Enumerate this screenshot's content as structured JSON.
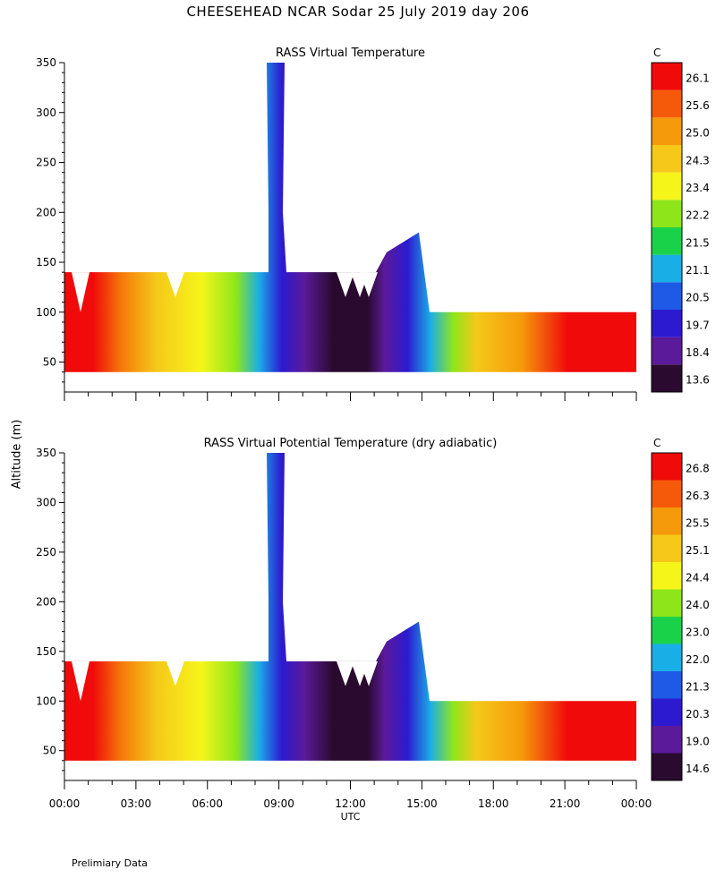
{
  "page": {
    "title": "CHEESEHEAD   NCAR Sodar   25 July 2019   day 206",
    "y_label": "Altitude (m)",
    "footer": "Prelimiary Data",
    "x_label": "UTC"
  },
  "chart_data": [
    {
      "type": "heatmap",
      "title": "RASS Virtual Temperature",
      "units": "C",
      "ylim": [
        20,
        350
      ],
      "y_ticks": [
        "50",
        "100",
        "150",
        "200",
        "250",
        "300",
        "350"
      ],
      "x_ticks": [],
      "colorbar_labels": [
        "13.6",
        "18.4",
        "19.7",
        "20.5",
        "21.1",
        "21.5",
        "22.2",
        "23.4",
        "24.3",
        "25.0",
        "25.6",
        "26.1"
      ],
      "colorbar_colors": [
        "#2a0a2e",
        "#5b1a9a",
        "#2c1ad0",
        "#1f5ae6",
        "#1aaee6",
        "#1ad24a",
        "#8ee61a",
        "#f5f51a",
        "#f5c81a",
        "#f59a0a",
        "#f55a0a",
        "#f00a0a"
      ]
    },
    {
      "type": "heatmap",
      "title": "RASS Virtual Potential Temperature (dry adiabatic)",
      "units": "C",
      "xlabel": "UTC",
      "ylim": [
        20,
        350
      ],
      "y_ticks": [
        "50",
        "100",
        "150",
        "200",
        "250",
        "300",
        "350"
      ],
      "x_ticks": [
        "00:00",
        "03:00",
        "06:00",
        "09:00",
        "12:00",
        "15:00",
        "18:00",
        "21:00",
        "00:00"
      ],
      "colorbar_labels": [
        "14.6",
        "19.0",
        "20.3",
        "21.3",
        "22.0",
        "23.0",
        "24.0",
        "24.4",
        "25.1",
        "25.5",
        "26.3",
        "26.8"
      ],
      "colorbar_colors": [
        "#2a0a2e",
        "#5b1a9a",
        "#2c1ad0",
        "#1f5ae6",
        "#1aaee6",
        "#1ad24a",
        "#8ee61a",
        "#f5f51a",
        "#f5c81a",
        "#f59a0a",
        "#f55a0a",
        "#f00a0a"
      ]
    }
  ]
}
